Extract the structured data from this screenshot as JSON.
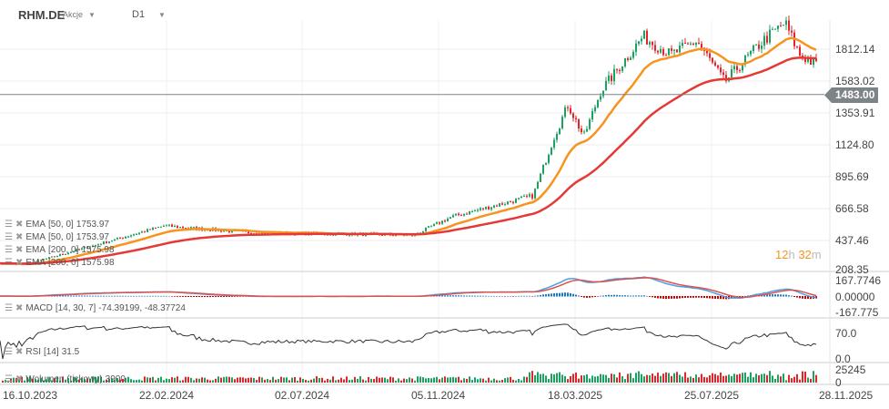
{
  "header": {
    "symbol": "RHM.DE",
    "instrument_type": "Akcje",
    "timeframe": "D1"
  },
  "indicators": {
    "ema1": {
      "name": "EMA",
      "params": "[50, 0]",
      "value": "1753.97"
    },
    "ema2": {
      "name": "EMA",
      "params": "[50, 0]",
      "value": "1753.97"
    },
    "ema3": {
      "name": "EMA",
      "params": "[200, 0]",
      "value": "1575.98"
    },
    "ema4": {
      "name": "EMA",
      "params": "[200, 0]",
      "value": "1575.98"
    },
    "macd": {
      "name": "MACD",
      "params": "[14, 30, 7]",
      "value": "-74.39199,  -48.37724"
    },
    "rsi": {
      "name": "RSI",
      "params": "[14]",
      "value": "31.5"
    },
    "volume": {
      "name": "Wolumen  (tickowy)",
      "value": "3900"
    }
  },
  "timer": {
    "hours": "12",
    "h": "h",
    "minutes": "32",
    "m": "m"
  },
  "current_price": "1483.00",
  "colors": {
    "up": "#1aa260",
    "down": "#e0262b",
    "ema50": "#f7931e",
    "ema200": "#e53935",
    "macd": "#4a9fe0",
    "signal": "#d9534f",
    "price_line": "#7d8488"
  },
  "chart_data": {
    "type": "candlestick",
    "price_axis_ticks": [
      "1812.14",
      "1583.02",
      "1353.91",
      "1124.80",
      "895.69",
      "666.58",
      "437.46",
      "208.35"
    ],
    "macd_axis_ticks": [
      "167.7746",
      "0.00000",
      "-167.775"
    ],
    "rsi_axis_ticks": [
      "70.0",
      "0.0"
    ],
    "volume_axis_ticks": [
      "25245",
      "0"
    ],
    "date_ticks": [
      "16.10.2023",
      "22.02.2024",
      "02.07.2024",
      "05.11.2024",
      "18.03.2025",
      "25.07.2025",
      "28.11.2025"
    ],
    "ylim": [
      208.35,
      2050
    ],
    "close_keypoints": [
      {
        "date": "2023-10-16",
        "close": 250
      },
      {
        "date": "2024-02-22",
        "close": 528
      },
      {
        "date": "2024-05-10",
        "close": 480
      },
      {
        "date": "2024-10-15",
        "close": 460
      },
      {
        "date": "2024-11-20",
        "close": 594
      },
      {
        "date": "2025-02-05",
        "close": 747
      },
      {
        "date": "2025-02-25",
        "close": 1177
      },
      {
        "date": "2025-03-10",
        "close": 1408
      },
      {
        "date": "2025-03-25",
        "close": 1177
      },
      {
        "date": "2025-04-10",
        "close": 1508
      },
      {
        "date": "2025-05-20",
        "close": 1905
      },
      {
        "date": "2025-06-15",
        "close": 1772
      },
      {
        "date": "2025-07-10",
        "close": 1871
      },
      {
        "date": "2025-08-05",
        "close": 1574
      },
      {
        "date": "2025-09-10",
        "close": 1871
      },
      {
        "date": "2025-10-01",
        "close": 2004
      },
      {
        "date": "2025-10-15",
        "close": 1772
      },
      {
        "date": "2025-11-05",
        "close": 1673
      },
      {
        "date": "2025-11-18",
        "close": 1483
      }
    ]
  }
}
